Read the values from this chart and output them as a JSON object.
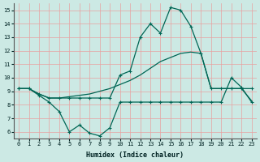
{
  "xlabel": "Humidex (Indice chaleur)",
  "bg_color": "#cce9e4",
  "grid_color": "#e8a0a0",
  "line_color": "#006655",
  "xlim": [
    -0.5,
    23.5
  ],
  "ylim": [
    5.5,
    15.5
  ],
  "xticks": [
    0,
    1,
    2,
    3,
    4,
    5,
    6,
    7,
    8,
    9,
    10,
    11,
    12,
    13,
    14,
    15,
    16,
    17,
    18,
    19,
    20,
    21,
    22,
    23
  ],
  "yticks": [
    6,
    7,
    8,
    9,
    10,
    11,
    12,
    13,
    14,
    15
  ],
  "curve_jagged_x": [
    0,
    1,
    2,
    3,
    4,
    5,
    6,
    7,
    8,
    9,
    10,
    11,
    12,
    13,
    14,
    15,
    16,
    17,
    18,
    19,
    20,
    21,
    22,
    23
  ],
  "curve_jagged_y": [
    9.2,
    9.2,
    8.7,
    8.2,
    7.5,
    6.0,
    6.5,
    5.9,
    5.7,
    6.3,
    8.2,
    8.2,
    8.2,
    8.2,
    8.2,
    8.2,
    8.2,
    8.2,
    8.2,
    8.2,
    8.2,
    10.0,
    9.3,
    8.2
  ],
  "curve_diag_x": [
    0,
    1,
    2,
    3,
    4,
    5,
    6,
    7,
    8,
    9,
    10,
    11,
    12,
    13,
    14,
    15,
    16,
    17,
    18,
    19,
    20,
    21,
    22,
    23
  ],
  "curve_diag_y": [
    9.2,
    9.2,
    8.8,
    8.5,
    8.5,
    8.6,
    8.7,
    8.8,
    9.0,
    9.2,
    9.5,
    9.8,
    10.2,
    10.7,
    11.2,
    11.5,
    11.8,
    11.9,
    11.8,
    9.2,
    9.2,
    9.2,
    9.2,
    8.3
  ],
  "curve_peak_x": [
    0,
    1,
    2,
    3,
    4,
    5,
    6,
    7,
    8,
    9,
    10,
    11,
    12,
    13,
    14,
    15,
    16,
    17,
    18,
    19,
    20,
    21,
    22,
    23
  ],
  "curve_peak_y": [
    9.2,
    9.2,
    8.8,
    8.5,
    8.5,
    8.5,
    8.5,
    8.5,
    8.5,
    8.5,
    10.2,
    10.5,
    13.0,
    14.0,
    13.3,
    15.2,
    15.0,
    13.8,
    11.8,
    9.2,
    9.2,
    9.2,
    9.2,
    9.2
  ]
}
